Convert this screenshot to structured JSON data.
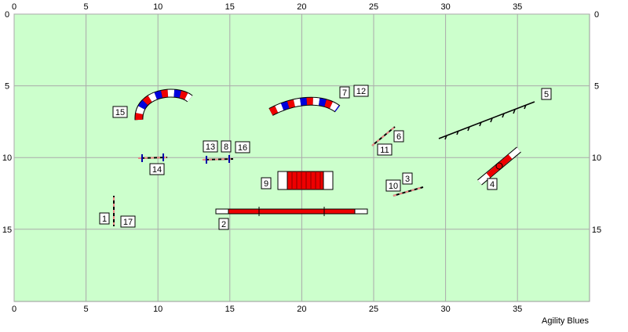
{
  "course": {
    "xticks": [
      0,
      5,
      10,
      15,
      20,
      25,
      30,
      35
    ],
    "yticks": [
      0,
      5,
      10,
      15
    ],
    "obstacle_numbers": [
      "15",
      "7",
      "12",
      "5",
      "13",
      "8",
      "16",
      "6",
      "11",
      "14",
      "9",
      "3",
      "10",
      "4",
      "1",
      "17",
      "2"
    ],
    "footer": "Agility Blues"
  }
}
